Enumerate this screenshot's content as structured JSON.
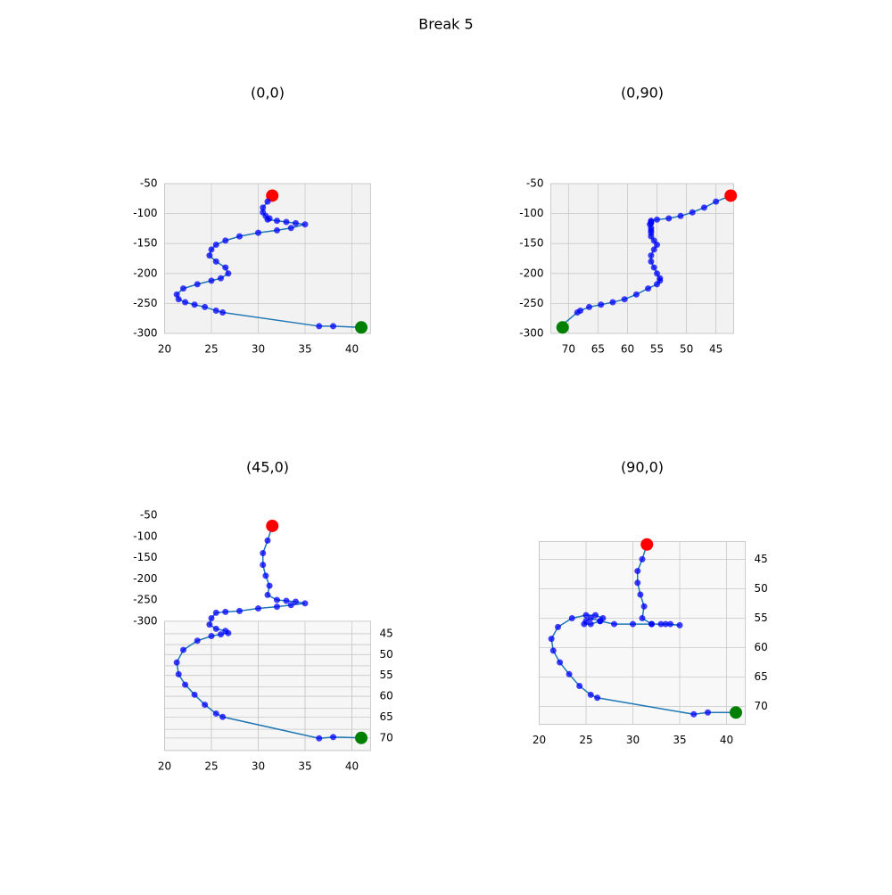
{
  "chart_data": {
    "type": "line3d",
    "title": "Break 5",
    "x": [
      31.5,
      31.0,
      30.5,
      30.5,
      30.8,
      31.2,
      31.0,
      32.0,
      33.0,
      34.0,
      35.0,
      33.5,
      32.0,
      30.0,
      28.0,
      26.5,
      25.5,
      25.0,
      24.8,
      25.5,
      26.5,
      26.8,
      26.0,
      25.0,
      23.5,
      22.0,
      21.3,
      21.5,
      22.2,
      23.2,
      24.3,
      25.5,
      26.2,
      36.5,
      38.0,
      41.0
    ],
    "y": [
      42.5,
      45,
      47,
      49,
      51,
      53,
      55,
      56,
      56,
      56,
      56.2,
      56,
      56,
      56,
      56,
      55.5,
      55,
      55.5,
      56,
      56,
      55.5,
      55,
      54.5,
      54.5,
      55,
      56.5,
      58.5,
      60.5,
      62.5,
      64.5,
      66.5,
      68,
      68.5,
      71.3,
      71,
      71
    ],
    "z": [
      -70,
      -80,
      -90,
      -98,
      -104,
      -108,
      -110,
      -112,
      -114,
      -116,
      -118,
      -124,
      -128,
      -132,
      -138,
      -145,
      -152,
      -160,
      -170,
      -180,
      -190,
      -200,
      -208,
      -212,
      -218,
      -225,
      -235,
      -243,
      -248,
      -252,
      -256,
      -262,
      -265,
      -288,
      -288,
      -290
    ],
    "line_color": "#1f77b4",
    "point_color": "#0000ff",
    "start_color": "#ff0000",
    "end_color": "#008000",
    "xlim": [
      20,
      42
    ],
    "ylim": [
      42,
      73
    ],
    "zlim": [
      -300,
      -50
    ],
    "xticks": [
      20,
      25,
      30,
      35,
      40
    ],
    "yticks": [
      45,
      50,
      55,
      60,
      65,
      70
    ],
    "zticks": [
      -300,
      -250,
      -200,
      -150,
      -100,
      -50
    ],
    "grid": true,
    "views": [
      {
        "title": "(0,0)",
        "elev": 0,
        "azim": 0
      },
      {
        "title": "(0,90)",
        "elev": 0,
        "azim": 90
      },
      {
        "title": "(45,0)",
        "elev": 45,
        "azim": 0
      },
      {
        "title": "(90,0)",
        "elev": 90,
        "azim": 0
      }
    ]
  }
}
